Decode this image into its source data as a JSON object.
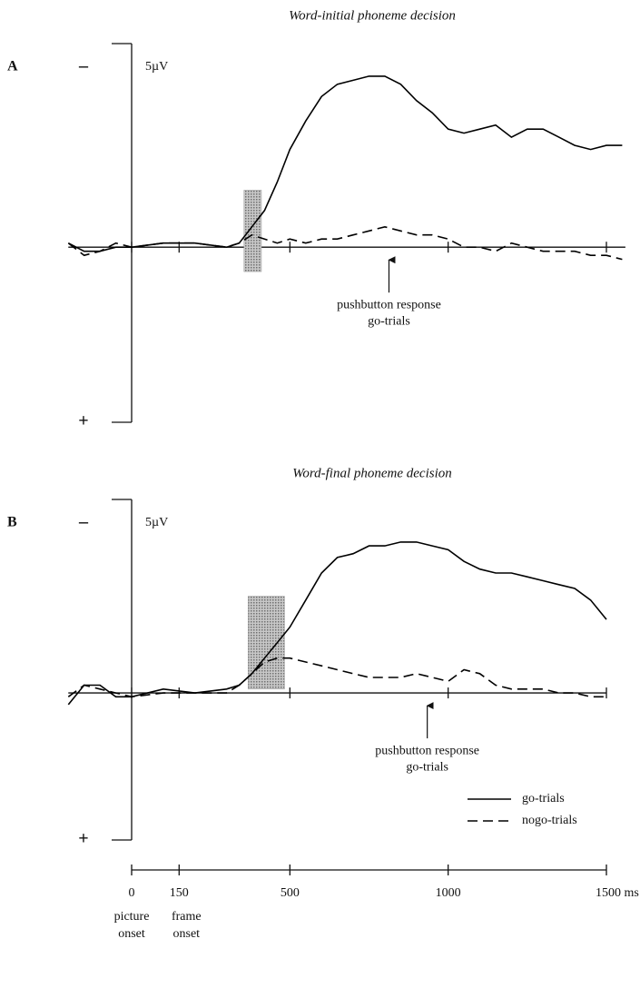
{
  "chart_data": [
    {
      "type": "line",
      "panel": "A",
      "title": "Word-initial phoneme decision",
      "y_scale_label": "5µV",
      "ylim": [
        -5,
        4.3
      ],
      "yticks": [
        {
          "value": -5,
          "label": "–"
        },
        {
          "value": 4.3,
          "label": "+"
        }
      ],
      "xlim": [
        -200,
        1560
      ],
      "x": [
        -200,
        -150,
        -100,
        -50,
        0,
        100,
        200,
        300,
        340,
        380,
        420,
        460,
        500,
        550,
        600,
        650,
        700,
        750,
        800,
        850,
        900,
        950,
        1000,
        1050,
        1100,
        1150,
        1200,
        1250,
        1300,
        1350,
        1400,
        1450,
        1500,
        1550
      ],
      "series": [
        {
          "name": "go-trials",
          "color": "#000000",
          "style": "solid",
          "values": [
            -0.1,
            0.1,
            0.1,
            0.0,
            0.0,
            -0.1,
            -0.1,
            0.0,
            -0.1,
            -0.5,
            -0.9,
            -1.6,
            -2.4,
            -3.1,
            -3.7,
            -4.0,
            -4.1,
            -4.2,
            -4.2,
            -4.0,
            -3.6,
            -3.3,
            -2.9,
            -2.8,
            -2.9,
            -3.0,
            -2.7,
            -2.9,
            -2.9,
            -2.7,
            -2.5,
            -2.4,
            -2.5,
            -2.5
          ]
        },
        {
          "name": "nogo-trials",
          "color": "#000000",
          "style": "dashed",
          "values": [
            -0.1,
            0.2,
            0.1,
            -0.1,
            0.0,
            -0.1,
            -0.1,
            0.0,
            -0.1,
            -0.3,
            -0.2,
            -0.1,
            -0.2,
            -0.1,
            -0.2,
            -0.2,
            -0.3,
            -0.4,
            -0.5,
            -0.4,
            -0.3,
            -0.3,
            -0.2,
            0.0,
            0.0,
            0.1,
            -0.1,
            0.0,
            0.1,
            0.1,
            0.1,
            0.2,
            0.2,
            0.3
          ]
        }
      ],
      "shaded": {
        "x": [
          355,
          410
        ],
        "y": [
          -1.4,
          0.6
        ],
        "color": "#9a9a9a"
      },
      "annotation": {
        "x": 813,
        "text": [
          "pushbutton response",
          "go-trials"
        ]
      }
    },
    {
      "type": "line",
      "panel": "B",
      "title": "Word-final phoneme decision",
      "y_scale_label": "5µV",
      "ylim": [
        -5,
        3.8
      ],
      "yticks": [
        {
          "value": -5,
          "label": "–"
        },
        {
          "value": 3.8,
          "label": "+"
        }
      ],
      "xlim": [
        -200,
        1500
      ],
      "x": [
        -200,
        -150,
        -100,
        -50,
        0,
        100,
        200,
        300,
        340,
        380,
        420,
        460,
        500,
        550,
        600,
        650,
        700,
        750,
        800,
        850,
        900,
        950,
        1000,
        1050,
        1100,
        1150,
        1200,
        1250,
        1300,
        1350,
        1400,
        1450,
        1500,
        1550
      ],
      "series": [
        {
          "name": "go-trials",
          "color": "#000000",
          "style": "solid",
          "values": [
            0.3,
            -0.2,
            -0.2,
            0.1,
            0.1,
            -0.1,
            0.0,
            -0.1,
            -0.2,
            -0.5,
            -0.9,
            -1.3,
            -1.7,
            -2.4,
            -3.1,
            -3.5,
            -3.6,
            -3.8,
            -3.8,
            -3.9,
            -3.9,
            -3.8,
            -3.7,
            -3.4,
            -3.2,
            -3.1,
            -3.1,
            -3.0,
            -2.9,
            -2.8,
            -2.7,
            -2.4,
            -1.9,
            null
          ]
        },
        {
          "name": "nogo-trials",
          "color": "#000000",
          "style": "dashed",
          "values": [
            0.1,
            -0.2,
            -0.1,
            0.0,
            0.1,
            0.0,
            0.0,
            0.0,
            -0.2,
            -0.5,
            -0.8,
            -0.9,
            -0.9,
            -0.8,
            -0.7,
            -0.6,
            -0.5,
            -0.4,
            -0.4,
            -0.4,
            -0.5,
            -0.4,
            -0.3,
            -0.6,
            -0.5,
            -0.2,
            -0.1,
            -0.1,
            -0.1,
            0.0,
            0.0,
            0.1,
            0.1,
            null
          ]
        }
      ],
      "shaded": {
        "x": [
          368,
          483
        ],
        "y": [
          -2.5,
          -0.1
        ],
        "color": "#9a9a9a"
      },
      "annotation": {
        "x": 934,
        "text": [
          "pushbutton response",
          "go-trials"
        ]
      },
      "legend": "lower right"
    }
  ],
  "time_axis": {
    "xlim": [
      0,
      1500
    ],
    "xticks": [
      0,
      150,
      500,
      1000,
      {
        "value": 1500,
        "label": "1500 ms"
      }
    ],
    "notes": [
      {
        "value": 0,
        "text": [
          "picture",
          "onset"
        ]
      },
      {
        "value": 150,
        "text": [
          "frame",
          "onset"
        ]
      }
    ]
  }
}
